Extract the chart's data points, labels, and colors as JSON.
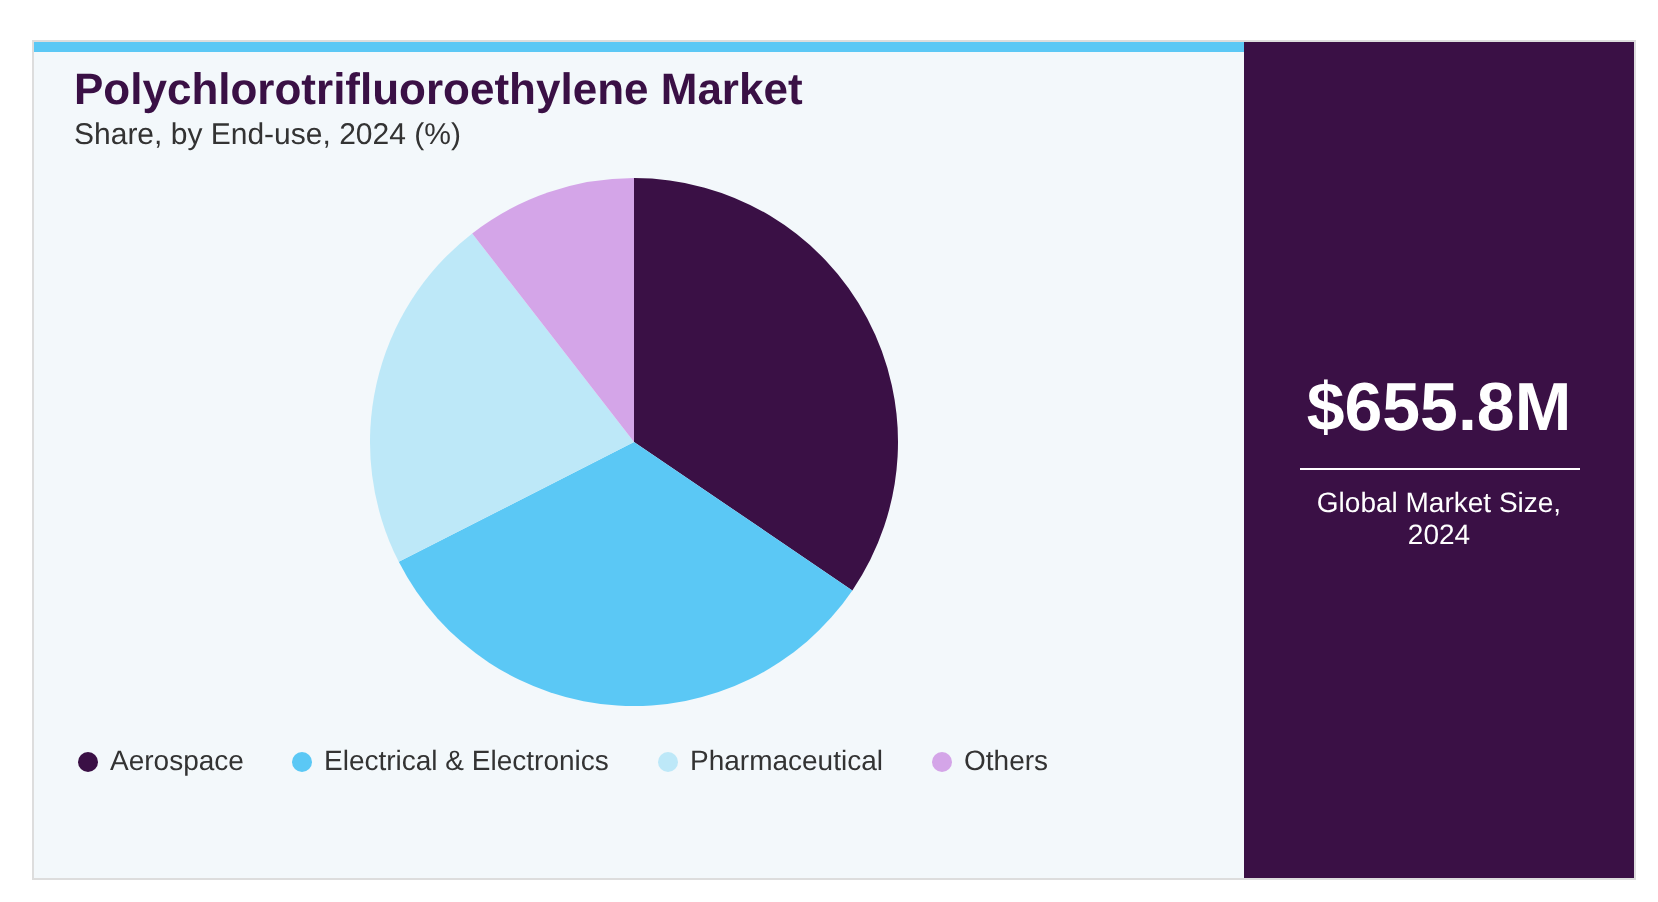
{
  "chart_data": {
    "type": "pie",
    "title": "Polychlorotrifluoroethylene Market",
    "subtitle": "Share, by End-use, 2024 (%)",
    "categories": [
      "Aerospace",
      "Electrical & Electronics",
      "Pharmaceutical",
      "Others"
    ],
    "values": [
      34.5,
      33,
      22,
      10.5
    ],
    "colors": [
      "#3a1045",
      "#5bc8f5",
      "#bde8f8",
      "#d4a5e8"
    ],
    "legend": "bottom",
    "annotations": [
      "$655.8M",
      "Global Market Size, 2024"
    ]
  }
}
